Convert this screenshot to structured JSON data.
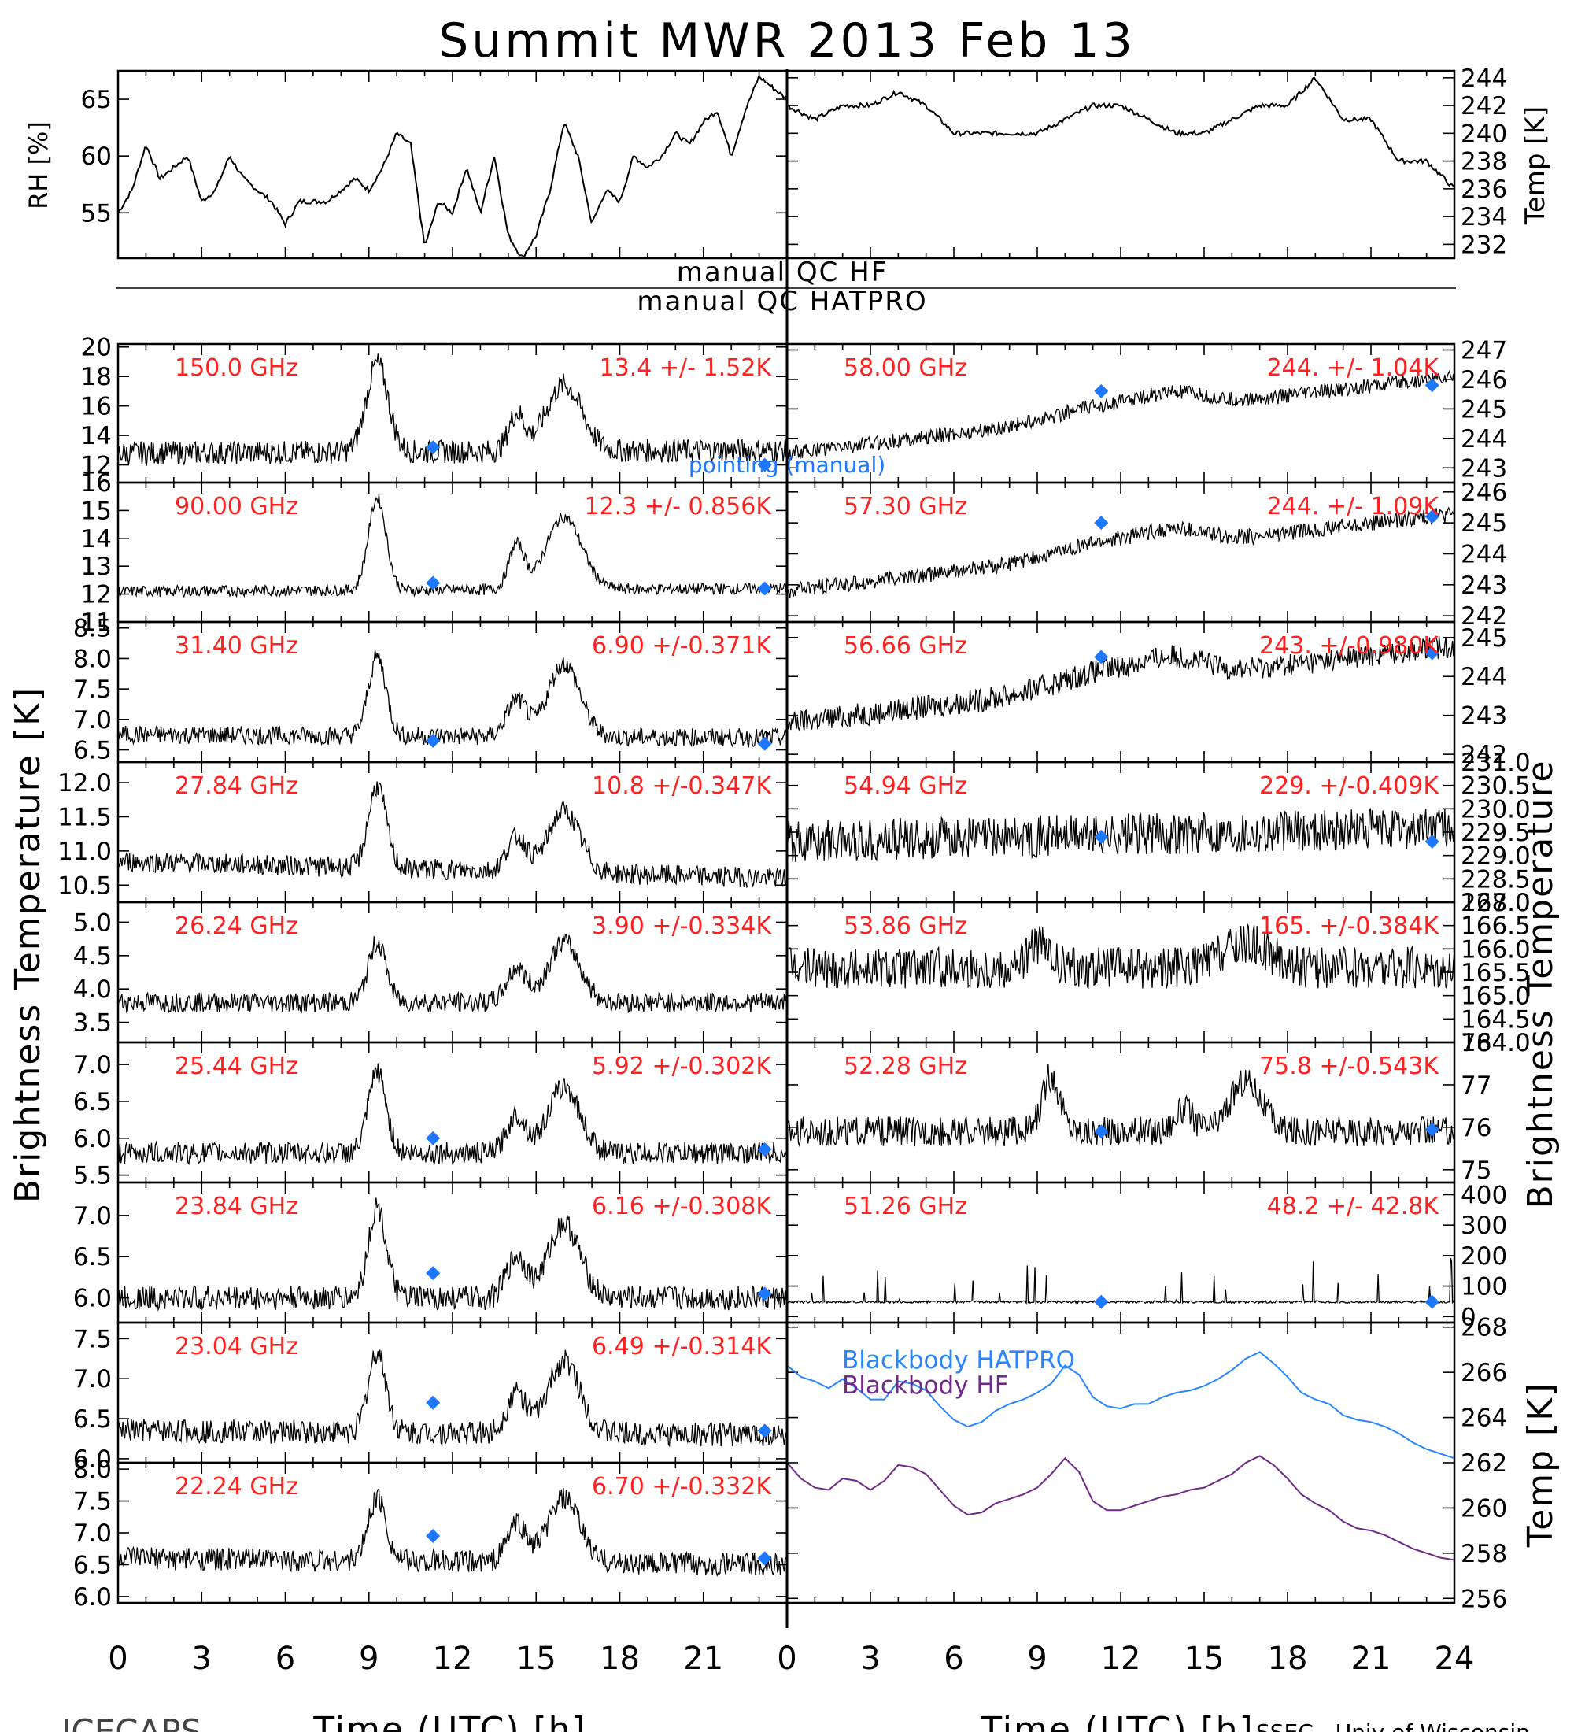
{
  "title": "Summit MWR 2013 Feb 13",
  "labels": {
    "rh": "RH [%]",
    "temp_top": "Temp [K]",
    "bt_left": "Brightness Temperature [K]",
    "bt_right": "Brightness Temperature",
    "temp_right": "Temp [K]",
    "xaxis_left": "Time (UTC) [h]",
    "xaxis_right": "Time (UTC) [h]",
    "qc_hf": "manual QC HF",
    "qc_hatpro": "manual QC HATPRO",
    "pointing": "pointing (manual)",
    "footer_left": "ICECAPS",
    "footer_right": "SSEC - Univ of Wisconsin"
  },
  "colors": {
    "data": "#000000",
    "annotation": "#ff2020",
    "marker": "#1e78ff",
    "hatpro": "#2a86ff",
    "hf": "#702a88"
  },
  "x_ticks": [
    0,
    3,
    6,
    9,
    12,
    15,
    18,
    21,
    24
  ],
  "chart_data": [
    {
      "type": "line",
      "name": "rh",
      "ylabel": "RH [%]",
      "ylim": [
        51,
        67.5
      ],
      "ticks": [
        55,
        60,
        65
      ],
      "series": [
        {
          "x": [
            0,
            0.5,
            1,
            1.5,
            2,
            2.5,
            3,
            3.5,
            4,
            4.5,
            5,
            5.5,
            6,
            6.5,
            7,
            7.5,
            8,
            8.5,
            9,
            9.5,
            10,
            10.5,
            11,
            11.5,
            12,
            12.5,
            13,
            13.5,
            14,
            14.5,
            15,
            15.5,
            16,
            16.5,
            17,
            17.5,
            18,
            18.5,
            19,
            19.5,
            20,
            20.5,
            21,
            21.5,
            22,
            22.5,
            23,
            23.5,
            24
          ],
          "values": [
            55,
            57,
            61,
            58,
            59,
            60,
            56,
            57,
            60,
            58,
            57,
            56,
            54,
            56,
            56,
            56,
            57,
            58,
            57,
            59,
            62,
            61,
            52,
            56,
            55,
            59,
            55,
            60,
            53,
            51,
            53,
            57,
            63,
            60,
            54,
            57,
            56,
            60,
            59,
            60,
            62,
            61,
            63,
            64,
            60,
            64,
            67,
            66,
            65
          ]
        }
      ]
    },
    {
      "type": "line",
      "name": "temp",
      "ylabel": "Temp [K]",
      "ylim": [
        231,
        244.5
      ],
      "ticks": [
        232,
        234,
        236,
        238,
        240,
        242,
        244
      ],
      "series": [
        {
          "x": [
            0,
            1,
            2,
            3,
            4,
            5,
            6,
            7,
            8,
            9,
            10,
            11,
            12,
            13,
            14,
            15,
            16,
            17,
            18,
            19,
            20,
            21,
            22,
            23,
            24
          ],
          "values": [
            242,
            241,
            242,
            242,
            243,
            242,
            240,
            240,
            240,
            240,
            241,
            242,
            242,
            241,
            240,
            240,
            241,
            242,
            242,
            244,
            241,
            241,
            238,
            238,
            236
          ]
        }
      ]
    },
    {
      "freq": "150.0 GHz",
      "stats": "13.4 +/- 1.52K",
      "ylim": [
        10.8,
        20.2
      ],
      "ticks": [
        12,
        14,
        16,
        18,
        20
      ],
      "mean": [
        12.8,
        13.0
      ],
      "markers": [
        [
          11.3,
          13.2
        ],
        [
          23.2,
          12.0
        ]
      ],
      "noise": 0.8,
      "bumps": [
        [
          9.3,
          0.55,
          6
        ],
        [
          14.3,
          0.4,
          2.5
        ],
        [
          16,
          0.9,
          4.5
        ]
      ]
    },
    {
      "freq": "90.00 GHz",
      "stats": "12.3 +/- 0.856K",
      "ylim": [
        11,
        16
      ],
      "ticks": [
        11,
        12,
        13,
        14,
        15,
        16
      ],
      "mean": [
        12.1,
        12.2
      ],
      "markers": [
        [
          11.3,
          12.4
        ],
        [
          23.2,
          12.2
        ]
      ],
      "noise": 0.2,
      "bumps": [
        [
          9.3,
          0.45,
          3.3
        ],
        [
          14.3,
          0.4,
          1.6
        ],
        [
          16,
          0.9,
          2.6
        ]
      ]
    },
    {
      "freq": "31.40 GHz",
      "stats": "6.90 +/-0.371K",
      "ylim": [
        6.3,
        8.6
      ],
      "ticks": [
        6.5,
        7.0,
        7.5,
        8.0,
        8.5
      ],
      "mean": [
        6.75,
        6.7
      ],
      "markers": [
        [
          11.3,
          6.65
        ],
        [
          23.2,
          6.6
        ]
      ],
      "noise": 0.15,
      "bumps": [
        [
          9.3,
          0.45,
          1.3
        ],
        [
          14.3,
          0.5,
          0.6
        ],
        [
          16,
          0.8,
          1.2
        ]
      ]
    },
    {
      "freq": "27.84 GHz",
      "stats": "10.8 +/-0.347K",
      "ylim": [
        10.25,
        12.3
      ],
      "ticks": [
        10.5,
        11.0,
        11.5,
        12.0
      ],
      "mean": [
        10.85,
        10.6
      ],
      "markers": [],
      "noise": 0.15,
      "bumps": [
        [
          9.3,
          0.45,
          1.2
        ],
        [
          14.3,
          0.5,
          0.5
        ],
        [
          16,
          0.8,
          0.9
        ]
      ]
    },
    {
      "freq": "26.24 GHz",
      "stats": "3.90 +/-0.334K",
      "ylim": [
        3.2,
        5.3
      ],
      "ticks": [
        3.5,
        4.0,
        4.5,
        5.0
      ],
      "mean": [
        3.8,
        3.8
      ],
      "markers": [],
      "noise": 0.15,
      "bumps": [
        [
          9.3,
          0.45,
          0.9
        ],
        [
          14.3,
          0.5,
          0.5
        ],
        [
          16,
          0.8,
          0.9
        ]
      ]
    },
    {
      "freq": "25.44 GHz",
      "stats": "5.92 +/-0.302K",
      "ylim": [
        5.4,
        7.3
      ],
      "ticks": [
        5.5,
        6.0,
        6.5,
        7.0
      ],
      "mean": [
        5.8,
        5.8
      ],
      "markers": [
        [
          11.3,
          6.0
        ],
        [
          23.2,
          5.85
        ]
      ],
      "noise": 0.15,
      "bumps": [
        [
          9.3,
          0.45,
          1.1
        ],
        [
          14.3,
          0.5,
          0.5
        ],
        [
          16,
          0.8,
          0.9
        ]
      ]
    },
    {
      "freq": "23.84 GHz",
      "stats": "6.16 +/-0.308K",
      "ylim": [
        5.7,
        7.4
      ],
      "ticks": [
        6.0,
        6.5,
        7.0
      ],
      "mean": [
        6.0,
        6.0
      ],
      "markers": [
        [
          11.3,
          6.3
        ],
        [
          23.2,
          6.05
        ]
      ],
      "noise": 0.15,
      "bumps": [
        [
          9.3,
          0.45,
          1.1
        ],
        [
          14.3,
          0.5,
          0.5
        ],
        [
          16,
          0.8,
          0.9
        ]
      ]
    },
    {
      "freq": "23.04 GHz",
      "stats": "6.49 +/-0.314K",
      "ylim": [
        5.95,
        7.7
      ],
      "ticks": [
        6.0,
        6.5,
        7.0,
        7.5
      ],
      "mean": [
        6.35,
        6.3
      ],
      "markers": [
        [
          11.3,
          6.7
        ],
        [
          23.2,
          6.35
        ]
      ],
      "noise": 0.15,
      "bumps": [
        [
          9.3,
          0.45,
          1.0
        ],
        [
          14.3,
          0.5,
          0.5
        ],
        [
          16,
          0.8,
          0.9
        ]
      ]
    },
    {
      "freq": "22.24 GHz",
      "stats": "6.70 +/-0.332K",
      "ylim": [
        5.9,
        8.1
      ],
      "ticks": [
        6.0,
        6.5,
        7.0,
        7.5,
        8.0
      ],
      "mean": [
        6.6,
        6.5
      ],
      "markers": [
        [
          11.3,
          6.95
        ],
        [
          23.2,
          6.6
        ]
      ],
      "noise": 0.18,
      "bumps": [
        [
          9.3,
          0.45,
          1.0
        ],
        [
          14.3,
          0.5,
          0.6
        ],
        [
          16,
          0.8,
          1.0
        ]
      ]
    },
    {
      "freq": "58.00 GHz",
      "stats": "244. +/- 1.04K",
      "ylim": [
        242.5,
        247.2
      ],
      "ticks": [
        243,
        244,
        245,
        246,
        247
      ],
      "mean": [
        243.5,
        246.1
      ],
      "markers": [
        [
          11.3,
          245.6
        ],
        [
          23.2,
          245.8
        ]
      ],
      "noise": 0.25,
      "bumps": [
        [
          11.5,
          2.5,
          0.4
        ],
        [
          14,
          1.5,
          0.4
        ]
      ]
    },
    {
      "freq": "57.30 GHz",
      "stats": "244. +/- 1.09K",
      "ylim": [
        241.8,
        246.3
      ],
      "ticks": [
        242,
        243,
        244,
        245,
        246
      ],
      "mean": [
        242.8,
        245.3
      ],
      "markers": [
        [
          11.3,
          245.0
        ],
        [
          23.2,
          245.2
        ]
      ],
      "noise": 0.25,
      "bumps": [
        [
          11.5,
          2.5,
          0.4
        ],
        [
          14,
          1.5,
          0.4
        ]
      ]
    },
    {
      "freq": "56.66 GHz",
      "stats": "243. +/-0.980K",
      "ylim": [
        241.8,
        245.4
      ],
      "ticks": [
        242,
        243,
        244,
        245
      ],
      "mean": [
        242.8,
        244.8
      ],
      "markers": [
        [
          11.3,
          244.5
        ],
        [
          23.2,
          244.6
        ]
      ],
      "noise": 0.3,
      "bumps": [
        [
          11.5,
          2.5,
          0.4
        ],
        [
          14,
          1.5,
          0.4
        ]
      ]
    },
    {
      "freq": "54.94 GHz",
      "stats": "229. +/-0.409K",
      "ylim": [
        228,
        231
      ],
      "ticks": [
        228.0,
        228.5,
        229.0,
        229.5,
        230.0,
        230.5,
        231.0
      ],
      "mean": [
        229.3,
        229.6
      ],
      "markers": [
        [
          11.3,
          229.4
        ],
        [
          23.2,
          229.3
        ]
      ],
      "noise": 0.45,
      "bumps": []
    },
    {
      "freq": "53.86 GHz",
      "stats": "165. +/-0.384K",
      "ylim": [
        164,
        167
      ],
      "ticks": [
        164.0,
        164.5,
        165.0,
        165.5,
        166.0,
        166.5,
        167.0
      ],
      "mean": [
        165.6,
        165.6
      ],
      "markers": [],
      "noise": 0.45,
      "bumps": [
        [
          9,
          0.5,
          0.5
        ],
        [
          16.5,
          1.2,
          0.5
        ]
      ]
    },
    {
      "freq": "52.28 GHz",
      "stats": "75.8 +/-0.543K",
      "ylim": [
        74.7,
        78
      ],
      "ticks": [
        75,
        76,
        77,
        78
      ],
      "mean": [
        75.9,
        75.9
      ],
      "markers": [
        [
          11.3,
          75.9
        ],
        [
          23.2,
          75.95
        ]
      ],
      "noise": 0.35,
      "bumps": [
        [
          9.5,
          0.45,
          1.3
        ],
        [
          14.3,
          0.5,
          0.5
        ],
        [
          16.5,
          0.8,
          1.2
        ]
      ]
    },
    {
      "freq": "51.26 GHz",
      "stats": "48.2 +/- 42.8K",
      "ylim": [
        -20,
        440
      ],
      "ticks": [
        0,
        100,
        200,
        300,
        400
      ],
      "mean": [
        48,
        48
      ],
      "markers": [
        [
          11.3,
          48
        ],
        [
          23.2,
          48
        ]
      ],
      "noise": 4,
      "bumps": []
    },
    {
      "type": "line",
      "name": "blackbody",
      "ylabel": "Temp [K]",
      "ylim": [
        255.8,
        268.2
      ],
      "ticks": [
        256,
        258,
        260,
        262,
        264,
        266,
        268
      ],
      "series": [
        {
          "name": "Blackbody HATPRO",
          "x": [
            0,
            0.5,
            1,
            1.5,
            2,
            2.5,
            3,
            3.5,
            4,
            4.5,
            5,
            5.5,
            6,
            6.5,
            7,
            7.5,
            8,
            8.5,
            9,
            9.5,
            10,
            10.5,
            11,
            11.5,
            12,
            12.5,
            13,
            13.5,
            14,
            14.5,
            15,
            15.5,
            16,
            16.5,
            17,
            17.5,
            18,
            18.5,
            19,
            19.5,
            20,
            20.5,
            21,
            21.5,
            22,
            22.5,
            23,
            23.5,
            24
          ],
          "values": [
            266.3,
            265.8,
            265.6,
            265.3,
            265.7,
            265.3,
            264.8,
            264.8,
            265.6,
            265.5,
            265.2,
            264.5,
            263.9,
            263.6,
            263.8,
            264.3,
            264.6,
            264.8,
            265.1,
            265.5,
            266.3,
            265.9,
            264.9,
            264.5,
            264.4,
            264.6,
            264.6,
            264.9,
            265.1,
            265.2,
            265.4,
            265.7,
            266.1,
            266.6,
            266.9,
            266.4,
            265.8,
            265.1,
            264.8,
            264.6,
            264.1,
            263.9,
            263.8,
            263.6,
            263.3,
            262.9,
            262.6,
            262.4,
            262.2
          ]
        },
        {
          "name": "Blackbody HF",
          "x": [
            0,
            0.5,
            1,
            1.5,
            2,
            2.5,
            3,
            3.5,
            4,
            4.5,
            5,
            5.5,
            6,
            6.5,
            7,
            7.5,
            8,
            8.5,
            9,
            9.5,
            10,
            10.5,
            11,
            11.5,
            12,
            12.5,
            13,
            13.5,
            14,
            14.5,
            15,
            15.5,
            16,
            16.5,
            17,
            17.5,
            18,
            18.5,
            19,
            19.5,
            20,
            20.5,
            21,
            21.5,
            22,
            22.5,
            23,
            23.5,
            24
          ],
          "values": [
            262.0,
            261.3,
            260.9,
            260.8,
            261.3,
            261.2,
            260.8,
            261.2,
            261.9,
            261.8,
            261.5,
            260.8,
            260.1,
            259.7,
            259.8,
            260.2,
            260.4,
            260.6,
            260.9,
            261.5,
            262.2,
            261.6,
            260.3,
            259.9,
            259.9,
            260.1,
            260.3,
            260.5,
            260.6,
            260.8,
            260.9,
            261.2,
            261.5,
            262.0,
            262.3,
            261.9,
            261.3,
            260.6,
            260.2,
            259.9,
            259.4,
            259.1,
            259.0,
            258.8,
            258.5,
            258.2,
            258.0,
            257.8,
            257.7
          ]
        }
      ]
    }
  ]
}
